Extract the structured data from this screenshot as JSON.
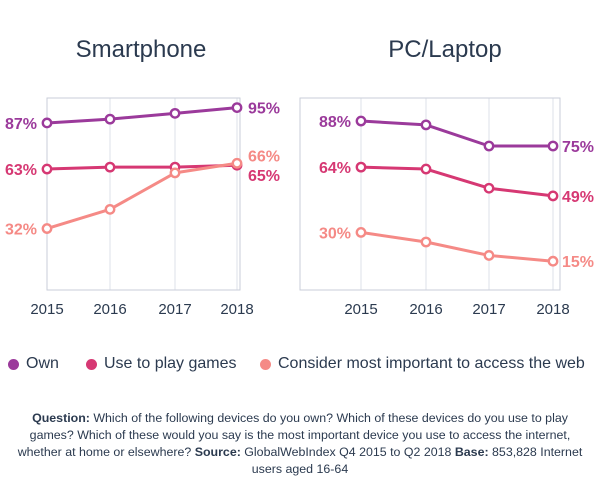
{
  "chart_data": [
    {
      "type": "line",
      "title": "Smartphone",
      "categories": [
        "2015",
        "2016",
        "2017",
        "2018"
      ],
      "ylim": [
        0,
        100
      ],
      "grid": true,
      "series": [
        {
          "name": "Own",
          "color": "#9b3a9b",
          "values": [
            87,
            89,
            92,
            95
          ],
          "start_label": "87%",
          "end_label": "95%"
        },
        {
          "name": "Use to play games",
          "color": "#d63873",
          "values": [
            63,
            64,
            64,
            65
          ],
          "start_label": "63%",
          "end_label": "65%"
        },
        {
          "name": "Consider most important to access the web",
          "color": "#f58a86",
          "values": [
            32,
            42,
            61,
            66
          ],
          "start_label": "32%",
          "end_label": "66%"
        }
      ]
    },
    {
      "type": "line",
      "title": "PC/Laptop",
      "categories": [
        "2015",
        "2016",
        "2017",
        "2018"
      ],
      "ylim": [
        0,
        100
      ],
      "grid": true,
      "series": [
        {
          "name": "Own",
          "color": "#9b3a9b",
          "values": [
            88,
            86,
            75,
            75
          ],
          "start_label": "88%",
          "end_label": "75%"
        },
        {
          "name": "Use to play games",
          "color": "#d63873",
          "values": [
            64,
            63,
            53,
            49
          ],
          "start_label": "64%",
          "end_label": "49%"
        },
        {
          "name": "Consider most important to access the web",
          "color": "#f58a86",
          "values": [
            30,
            25,
            18,
            15
          ],
          "start_label": "30%",
          "end_label": "15%"
        }
      ]
    }
  ],
  "legend": [
    {
      "label": "Own",
      "color": "#9b3a9b"
    },
    {
      "label": "Use to play games",
      "color": "#d63873"
    },
    {
      "label": "Consider most important to access the web",
      "color": "#f58a86"
    }
  ],
  "footnote": {
    "question_label": "Question:",
    "question_text": " Which of the following devices do you own? Which of these devices do you use to play games? Which of these would you say is the most important device you use to access the internet, whether at home or elsewhere? ",
    "source_label": "Source:",
    "source_text": " GlobalWebIndex Q4 2015 to Q2 2018  ",
    "base_label": "Base:",
    "base_text": " 853,828 Internet users aged 16-64"
  }
}
